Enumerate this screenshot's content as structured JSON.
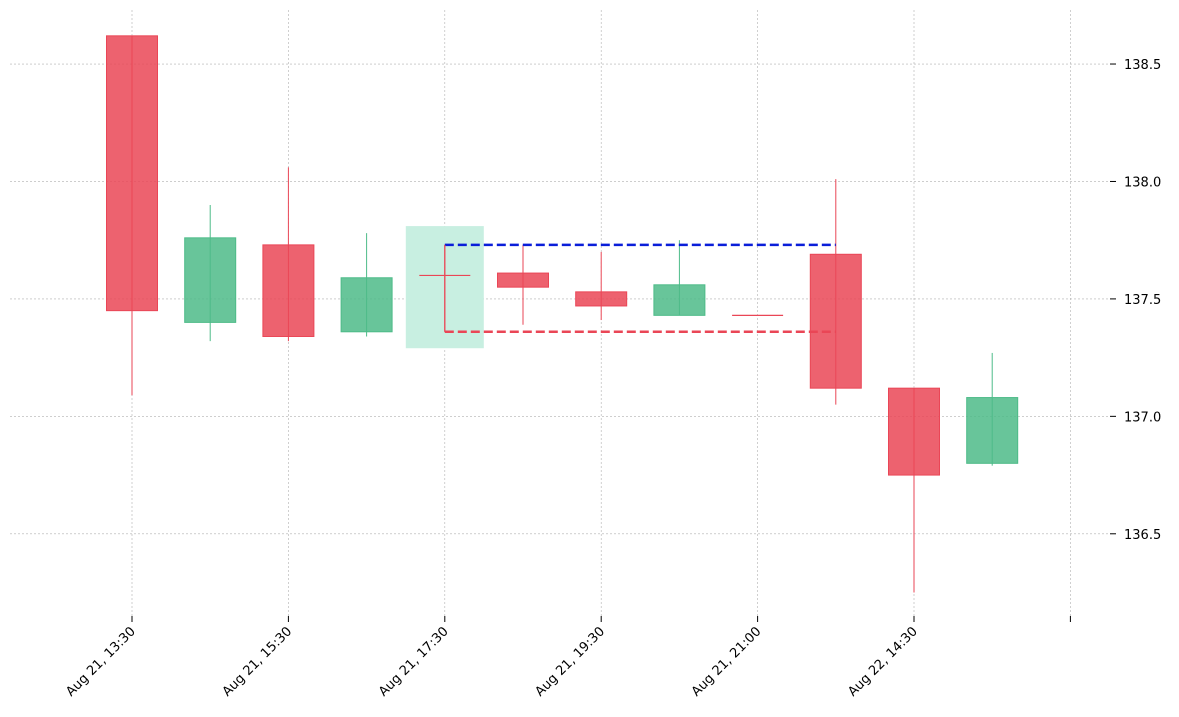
{
  "chart_data": {
    "type": "candlestick",
    "title": "",
    "xlabel": "",
    "ylabel": "",
    "ylim": [
      136.15,
      138.73
    ],
    "y_ticks": [
      136.5,
      137.0,
      137.5,
      138.0,
      138.5
    ],
    "y_tick_labels": [
      "136.5",
      "137.0",
      "137.5",
      "138.0",
      "138.5"
    ],
    "y_axis_side": "right",
    "x_ticks": [
      {
        "index": 0,
        "label": "Aug 21, 13:30"
      },
      {
        "index": 2,
        "label": "Aug 21, 15:30"
      },
      {
        "index": 4,
        "label": "Aug 21, 17:30"
      },
      {
        "index": 6,
        "label": "Aug 21, 19:30"
      },
      {
        "index": 8,
        "label": "Aug 21, 21:00"
      },
      {
        "index": 10,
        "label": "Aug 22, 14:30"
      },
      {
        "index": 12,
        "label": ""
      }
    ],
    "grid": true,
    "candles": [
      {
        "open": 138.62,
        "high": 138.62,
        "low": 137.09,
        "close": 137.45
      },
      {
        "open": 137.4,
        "high": 137.9,
        "low": 137.32,
        "close": 137.76
      },
      {
        "open": 137.73,
        "high": 138.06,
        "low": 137.32,
        "close": 137.34
      },
      {
        "open": 137.36,
        "high": 137.78,
        "low": 137.34,
        "close": 137.59
      },
      {
        "open": 137.6,
        "high": 137.73,
        "low": 137.36,
        "close": 137.6
      },
      {
        "open": 137.61,
        "high": 137.73,
        "low": 137.39,
        "close": 137.55
      },
      {
        "open": 137.53,
        "high": 137.7,
        "low": 137.41,
        "close": 137.47
      },
      {
        "open": 137.43,
        "high": 137.75,
        "low": 137.43,
        "close": 137.56
      },
      {
        "open": 137.43,
        "high": 137.43,
        "low": 137.43,
        "close": 137.43
      },
      {
        "open": 137.69,
        "high": 138.01,
        "low": 137.05,
        "close": 137.12
      },
      {
        "open": 137.12,
        "high": 137.12,
        "low": 136.25,
        "close": 136.75
      },
      {
        "open": 136.8,
        "high": 137.27,
        "low": 136.79,
        "close": 137.08
      }
    ],
    "highlight": {
      "index": 4,
      "top": 137.81,
      "bottom": 137.29
    },
    "resistance": {
      "value": 137.73,
      "from_index": 4,
      "to_index": 9
    },
    "support": {
      "value": 137.36,
      "from_index": 4,
      "to_index": 9
    },
    "colors": {
      "bullish": "#4dbb88",
      "bearish": "#ea4656",
      "highlight": "#c8efe1",
      "resistance": "#0a1ed9",
      "support": "#ea4656",
      "grid": "#b0b0b0"
    }
  }
}
